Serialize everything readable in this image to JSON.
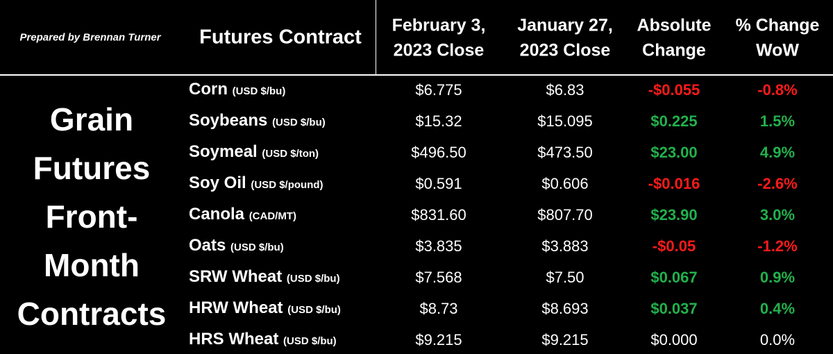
{
  "credit": "Prepared by Brennan Turner",
  "side_title": [
    "Grain",
    "Futures",
    "Front-",
    "Month",
    "Contracts"
  ],
  "header": {
    "contract": "Futures Contract",
    "columns": [
      [
        "February 3,",
        "2023 Close"
      ],
      [
        "January 27,",
        "2023 Close"
      ],
      [
        "Absolute",
        "Change"
      ],
      [
        "% Change",
        "WoW"
      ]
    ]
  },
  "colors": {
    "up": "#22b14c",
    "down": "#ff1a1a",
    "flat": "#ffffff"
  },
  "rows": [
    {
      "name": "Corn",
      "unit": "(USD $/bu)",
      "feb3": "$6.775",
      "jan27": "$6.83",
      "abs": "-$0.055",
      "pct": "-0.8%",
      "trend": "down"
    },
    {
      "name": "Soybeans",
      "unit": "(USD $/bu)",
      "feb3": "$15.32",
      "jan27": "$15.095",
      "abs": "$0.225",
      "pct": "1.5%",
      "trend": "up"
    },
    {
      "name": "Soymeal",
      "unit": "(USD $/ton)",
      "feb3": "$496.50",
      "jan27": "$473.50",
      "abs": "$23.00",
      "pct": "4.9%",
      "trend": "up"
    },
    {
      "name": "Soy Oil",
      "unit": "(USD $/pound)",
      "feb3": "$0.591",
      "jan27": "$0.606",
      "abs": "-$0.016",
      "pct": "-2.6%",
      "trend": "down"
    },
    {
      "name": "Canola",
      "unit": "(CAD/MT)",
      "feb3": "$831.60",
      "jan27": "$807.70",
      "abs": "$23.90",
      "pct": "3.0%",
      "trend": "up"
    },
    {
      "name": "Oats",
      "unit": "(USD $/bu)",
      "feb3": "$3.835",
      "jan27": "$3.883",
      "abs": "-$0.05",
      "pct": "-1.2%",
      "trend": "down"
    },
    {
      "name": "SRW Wheat",
      "unit": "(USD $/bu)",
      "feb3": "$7.568",
      "jan27": "$7.50",
      "abs": "$0.067",
      "pct": "0.9%",
      "trend": "up"
    },
    {
      "name": "HRW Wheat",
      "unit": "(USD $/bu)",
      "feb3": "$8.73",
      "jan27": "$8.693",
      "abs": "$0.037",
      "pct": "0.4%",
      "trend": "up"
    },
    {
      "name": "HRS Wheat",
      "unit": "(USD $/bu)",
      "feb3": "$9.215",
      "jan27": "$9.215",
      "abs": "$0.000",
      "pct": "0.0%",
      "trend": "flat"
    }
  ]
}
